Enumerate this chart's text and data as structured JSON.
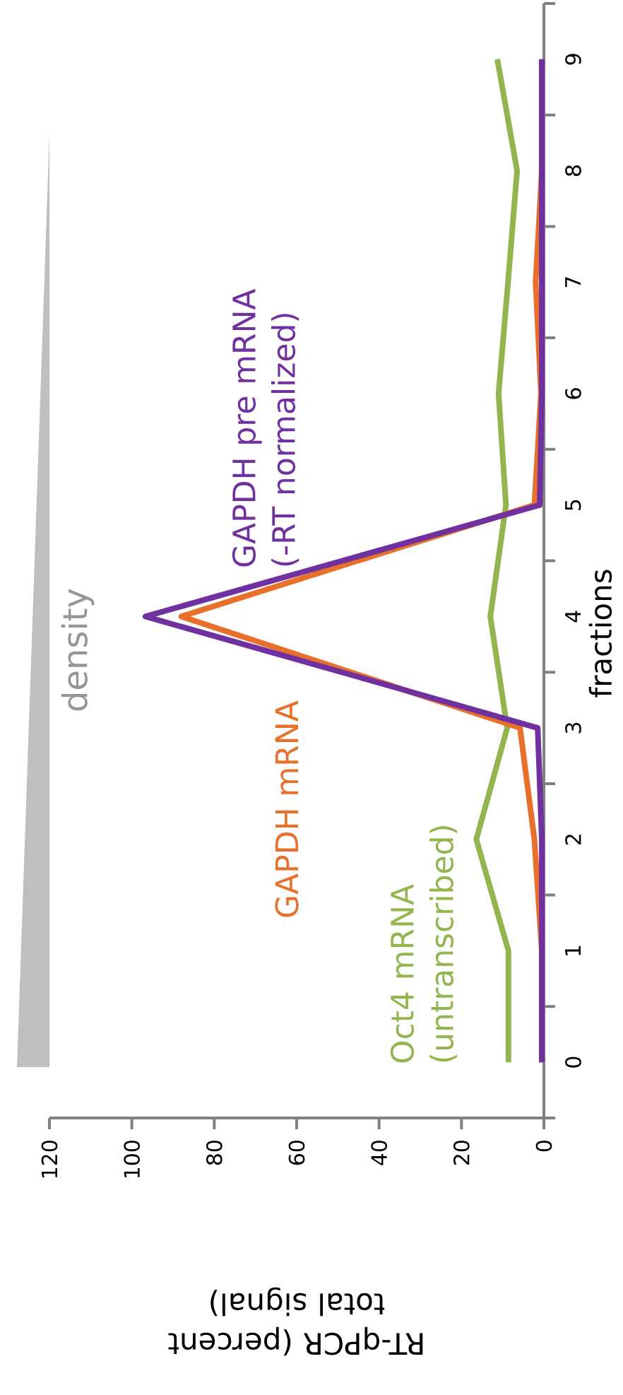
{
  "chart_data": {
    "type": "line",
    "xlabel": "RT-qPCR (percent total signal)",
    "ylabel": "fractions",
    "xlim": [
      120,
      0
    ],
    "xticks": [
      120,
      100,
      80,
      60,
      40,
      20,
      0
    ],
    "ylim": [
      -0.5,
      9.5
    ],
    "yticks": [
      {
        "value": -0.5,
        "label": null
      },
      0,
      {
        "value": 0.5,
        "label": null
      },
      1,
      {
        "value": 1.5,
        "label": null
      },
      2,
      {
        "value": 2.5,
        "label": null
      },
      3,
      {
        "value": 3.5,
        "label": null
      },
      4,
      {
        "value": 4.5,
        "label": null
      },
      5,
      {
        "value": 5.5,
        "label": null
      },
      6,
      {
        "value": 6.5,
        "label": null
      },
      7,
      {
        "value": 7.5,
        "label": null
      },
      8,
      {
        "value": 8.5,
        "label": null
      },
      9,
      {
        "value": 9.5,
        "label": null
      }
    ],
    "series": [
      {
        "name": "Oct4 mRNA (untranscribed)",
        "color": "#92b550",
        "x": [
          8.6,
          8.6,
          16.4,
          8.9,
          13,
          9.2,
          11,
          8.7,
          6.5,
          11.3
        ],
        "values": [
          0,
          1,
          2,
          3,
          4,
          5,
          6,
          7,
          8,
          9
        ]
      },
      {
        "name": "GAPDH mRNA",
        "color": "#e8702a",
        "x": [
          0.5,
          0.5,
          2.3,
          5.8,
          88,
          2.3,
          0.7,
          2,
          0.5,
          0.5
        ],
        "values": [
          0,
          1,
          2,
          3,
          4,
          5,
          6,
          7,
          8,
          9
        ]
      },
      {
        "name": "GAPDH pre mRNA (-RT normalized)",
        "color": "#7030a0",
        "x": [
          0.5,
          0.5,
          0.5,
          1.5,
          96.7,
          1,
          0.5,
          0.5,
          0.5,
          0.5
        ],
        "values": [
          0,
          1,
          2,
          3,
          4,
          5,
          6,
          7,
          8,
          9
        ]
      }
    ],
    "annotations": [
      "density"
    ],
    "grid": false,
    "marker": "none",
    "line_style": "solid"
  }
}
